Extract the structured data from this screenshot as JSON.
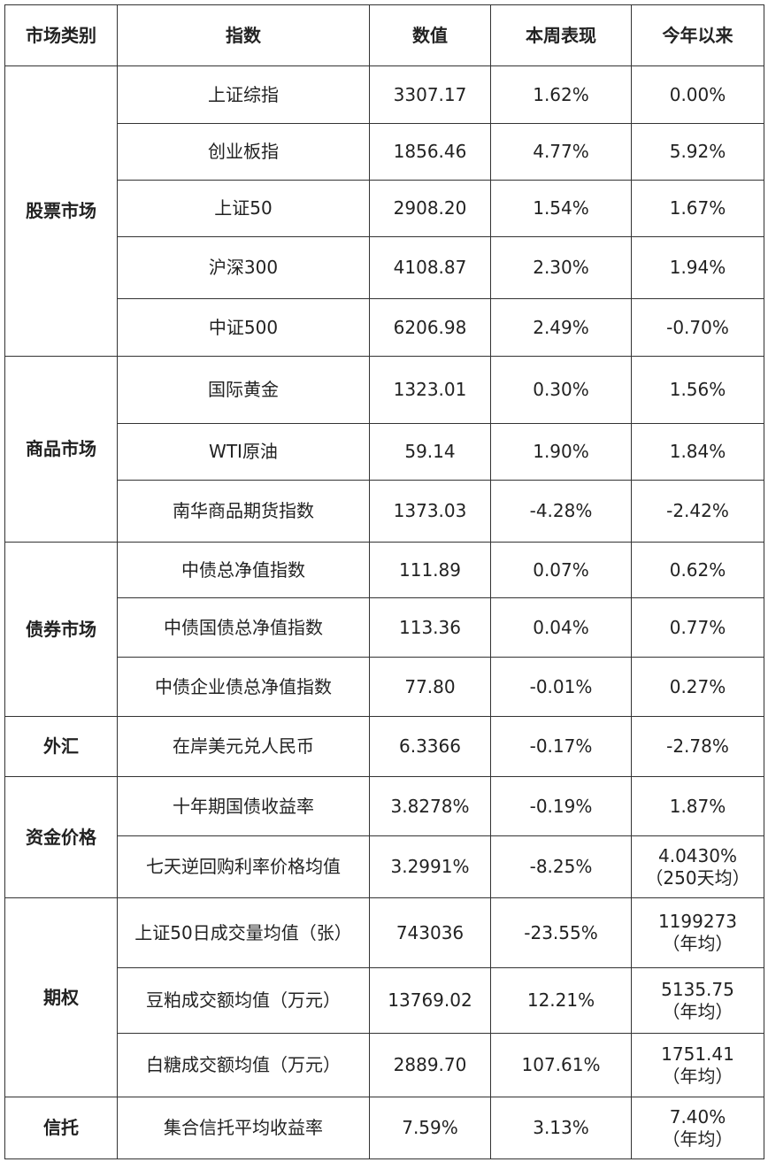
{
  "headers": [
    "市场类别",
    "指数",
    "数值",
    "本周表现",
    "今年以来"
  ],
  "groups": [
    {
      "category": "股票市场",
      "rows": [
        {
          "index": "上证综指",
          "value": "3307.17",
          "week": "1.62%",
          "ytd": "0.00%"
        },
        {
          "index": "创业板指",
          "value": "1856.46",
          "week": "4.77%",
          "ytd": "5.92%"
        },
        {
          "index": "上证50",
          "value": "2908.20",
          "week": "1.54%",
          "ytd": "1.67%"
        },
        {
          "index": "沪深300",
          "value": "4108.87",
          "week": "2.30%",
          "ytd": "1.94%"
        },
        {
          "index": "中证500",
          "value": "6206.98",
          "week": "2.49%",
          "ytd": "-0.70%"
        }
      ]
    },
    {
      "category": "商品市场",
      "rows": [
        {
          "index": "国际黄金",
          "value": "1323.01",
          "week": "0.30%",
          "ytd": "1.56%"
        },
        {
          "index": "WTI原油",
          "value": "59.14",
          "week": "1.90%",
          "ytd": "1.84%"
        },
        {
          "index": "南华商品期货指数",
          "value": "1373.03",
          "week": "-4.28%",
          "ytd": "-2.42%"
        }
      ]
    },
    {
      "category": "债券市场",
      "rows": [
        {
          "index": "中债总净值指数",
          "value": "111.89",
          "week": "0.07%",
          "ytd": "0.62%"
        },
        {
          "index": "中债国债总净值指数",
          "value": "113.36",
          "week": "0.04%",
          "ytd": "0.77%"
        },
        {
          "index": "中债企业债总净值指数",
          "value": "77.80",
          "week": "-0.01%",
          "ytd": "0.27%"
        }
      ]
    },
    {
      "category": "外汇",
      "rows": [
        {
          "index": "在岸美元兑人民币",
          "value": "6.3366",
          "week": "-0.17%",
          "ytd": "-2.78%"
        }
      ]
    },
    {
      "category": "资金价格",
      "rows": [
        {
          "index": "十年期国债收益率",
          "value": "3.8278%",
          "week": "-0.19%",
          "ytd": "1.87%"
        },
        {
          "index": "七天逆回购利率价格均值",
          "value": "3.2991%",
          "week": "-8.25%",
          "ytd": "4.0430%",
          "ytd_note": "（250天均）"
        }
      ]
    },
    {
      "category": "期权",
      "rows": [
        {
          "index": "上证50日成交量均值（张）",
          "value": "743036",
          "week": "-23.55%",
          "ytd": "1199273",
          "ytd_note": "（年均）"
        },
        {
          "index": "豆粕成交额均值（万元）",
          "value": "13769.02",
          "week": "12.21%",
          "ytd": "5135.75",
          "ytd_note": "（年均）"
        },
        {
          "index": "白糖成交额均值（万元）",
          "value": "2889.70",
          "week": "107.61%",
          "ytd": "1751.41",
          "ytd_note": "（年均）"
        }
      ]
    },
    {
      "category": "信托",
      "rows": [
        {
          "index": "集合信托平均收益率",
          "value": "7.59%",
          "week": "3.13%",
          "ytd": "7.40%",
          "ytd_note": "（年均）"
        }
      ]
    }
  ]
}
